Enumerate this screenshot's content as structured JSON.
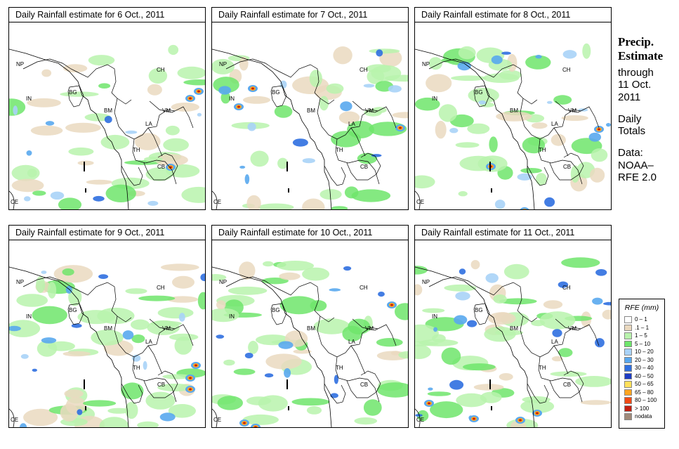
{
  "panels": [
    {
      "title": "Daily Rainfall estimate for  6 Oct., 2011"
    },
    {
      "title": "Daily Rainfall estimate for  7 Oct., 2011"
    },
    {
      "title": "Daily Rainfall estimate for  8 Oct., 2011"
    },
    {
      "title": "Daily Rainfall estimate for  9 Oct., 2011"
    },
    {
      "title": "Daily Rainfall estimate for  10 Oct., 2011"
    },
    {
      "title": "Daily Rainfall estimate for  11 Oct., 2011"
    }
  ],
  "country_labels": [
    "NP",
    "CH",
    "IN",
    "BG",
    "BM",
    "VM",
    "LA",
    "TH",
    "CB",
    "CE"
  ],
  "sidebar": {
    "heading_1": "Precip.",
    "heading_2": "Estimate",
    "through": "through",
    "date_1": "11 Oct.",
    "date_2": "2011",
    "daily_1": "Daily",
    "daily_2": "Totals",
    "data_1": "Data:",
    "data_2": "NOAA–",
    "data_3": "RFE 2.0"
  },
  "legend": {
    "title": "RFE (mm)",
    "entries": [
      {
        "label": "0 – 1",
        "color": "#ffffff"
      },
      {
        "label": ".1 – 1",
        "color": "#ead9bf"
      },
      {
        "label": "1 – 5",
        "color": "#b9f3ad"
      },
      {
        "label": "5 – 10",
        "color": "#6ee56b"
      },
      {
        "label": "10 – 20",
        "color": "#a9d3f7"
      },
      {
        "label": "20 – 30",
        "color": "#59a8ee"
      },
      {
        "label": "30 – 40",
        "color": "#2f6fe0"
      },
      {
        "label": "40 – 50",
        "color": "#1d3cc4"
      },
      {
        "label": "50 – 65",
        "color": "#ffe05a"
      },
      {
        "label": "65 – 80",
        "color": "#ffa51f"
      },
      {
        "label": "80 – 100",
        "color": "#f24a14"
      },
      {
        "label": "> 100",
        "color": "#c41e10"
      },
      {
        "label": "nodata",
        "color": "#a08a7a"
      }
    ]
  },
  "colors": {
    "light_tan": "#ead9bf",
    "light_green": "#b9f3ad",
    "green": "#6ee56b",
    "light_blue": "#a9d3f7",
    "blue": "#59a8ee",
    "dark_blue": "#2f6fe0",
    "orange": "#ffa51f",
    "red": "#c41e10"
  }
}
